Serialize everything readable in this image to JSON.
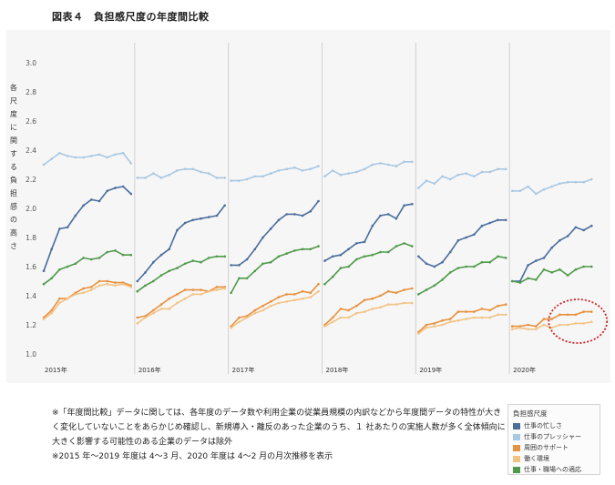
{
  "figure_title": "図表４　負担感尺度の年度間比較",
  "notes": [
    "※「年度間比較」データに関しては、各年度のデータ数や利用企業の従業員規模の内訳などから年度間データの特性が大きく変化していないことをあらかじめ確認し、新規導入・離反のあった企業のうち、１ 社あたりの実施人数が多く全体傾向に大きく影響する可能性のある企業のデータは除外",
    "※2015 年～2019 年度は 4～3 月、2020 年度は 4～2 月の月次推移を表示"
  ],
  "legend": {
    "title": "負担感尺度",
    "items": [
      {
        "label": "仕事の忙しさ",
        "color": "#4a6d9c"
      },
      {
        "label": "仕事のプレッシャー",
        "color": "#a9c8e3"
      },
      {
        "label": "周囲のサポート",
        "color": "#e8913e"
      },
      {
        "label": "働く環境",
        "color": "#f3c384"
      },
      {
        "label": "仕事・職場への適応",
        "color": "#4f9a4a"
      }
    ]
  },
  "highlight": {
    "shape": "dotted ellipse",
    "color": "#cc2222",
    "panel": "2020年",
    "marks": "end of 周囲のサポート and 働く環境"
  },
  "chart_data": {
    "type": "line",
    "title": "",
    "ylabel": "各尺度に関する負担感の高さ",
    "ylim": [
      1.0,
      3.0
    ],
    "yticks": [
      "1.0",
      "1.2",
      "1.4",
      "1.6",
      "1.8",
      "2.0",
      "2.2",
      "2.4",
      "2.6",
      "2.8",
      "3.0"
    ],
    "grid": false,
    "legend_position": "bottom-right, outside plot",
    "panels": [
      {
        "year": "2015年",
        "series": [
          {
            "name": "仕事のプレッシャー",
            "values": [
              2.3,
              2.34,
              2.38,
              2.36,
              2.35,
              2.35,
              2.36,
              2.37,
              2.35,
              2.37,
              2.38,
              2.31
            ]
          },
          {
            "name": "仕事の忙しさ",
            "values": [
              1.57,
              1.72,
              1.86,
              1.87,
              1.95,
              2.02,
              2.06,
              2.05,
              2.12,
              2.14,
              2.15,
              2.1
            ]
          },
          {
            "name": "仕事・職場への適応",
            "values": [
              1.48,
              1.52,
              1.58,
              1.6,
              1.62,
              1.66,
              1.65,
              1.66,
              1.7,
              1.71,
              1.68,
              1.68
            ]
          },
          {
            "name": "周囲のサポート",
            "values": [
              1.25,
              1.3,
              1.38,
              1.38,
              1.42,
              1.45,
              1.46,
              1.5,
              1.5,
              1.49,
              1.49,
              1.47
            ]
          },
          {
            "name": "働く環境",
            "values": [
              1.24,
              1.28,
              1.35,
              1.38,
              1.41,
              1.42,
              1.44,
              1.47,
              1.48,
              1.47,
              1.48,
              1.46
            ]
          }
        ]
      },
      {
        "year": "2016年",
        "series": [
          {
            "name": "仕事のプレッシャー",
            "values": [
              2.21,
              2.21,
              2.24,
              2.21,
              2.23,
              2.26,
              2.27,
              2.27,
              2.25,
              2.24,
              2.21,
              2.21
            ]
          },
          {
            "name": "仕事の忙しさ",
            "values": [
              1.5,
              1.56,
              1.63,
              1.68,
              1.72,
              1.85,
              1.9,
              1.92,
              1.93,
              1.94,
              1.95,
              2.02
            ]
          },
          {
            "name": "仕事・職場への適応",
            "values": [
              1.43,
              1.47,
              1.5,
              1.54,
              1.57,
              1.59,
              1.62,
              1.64,
              1.63,
              1.66,
              1.67,
              1.67
            ]
          },
          {
            "name": "周囲のサポート",
            "values": [
              1.25,
              1.26,
              1.3,
              1.34,
              1.38,
              1.41,
              1.44,
              1.44,
              1.44,
              1.43,
              1.46,
              1.46
            ]
          },
          {
            "name": "働く環境",
            "values": [
              1.21,
              1.25,
              1.28,
              1.31,
              1.31,
              1.35,
              1.38,
              1.41,
              1.41,
              1.43,
              1.44,
              1.45
            ]
          }
        ]
      },
      {
        "year": "2017年",
        "series": [
          {
            "name": "仕事のプレッシャー",
            "values": [
              2.19,
              2.19,
              2.2,
              2.22,
              2.22,
              2.24,
              2.26,
              2.27,
              2.28,
              2.26,
              2.27,
              2.29
            ]
          },
          {
            "name": "仕事の忙しさ",
            "values": [
              1.61,
              1.61,
              1.65,
              1.72,
              1.8,
              1.86,
              1.92,
              1.96,
              1.96,
              1.95,
              1.98,
              2.05
            ]
          },
          {
            "name": "仕事・職場への適応",
            "values": [
              1.42,
              1.52,
              1.52,
              1.57,
              1.62,
              1.63,
              1.67,
              1.69,
              1.71,
              1.72,
              1.72,
              1.74
            ]
          },
          {
            "name": "周囲のサポート",
            "values": [
              1.19,
              1.25,
              1.26,
              1.3,
              1.33,
              1.36,
              1.39,
              1.41,
              1.41,
              1.43,
              1.42,
              1.48
            ]
          },
          {
            "name": "働く環境",
            "values": [
              1.18,
              1.22,
              1.25,
              1.28,
              1.3,
              1.33,
              1.35,
              1.36,
              1.37,
              1.38,
              1.39,
              1.43
            ]
          }
        ]
      },
      {
        "year": "2018年",
        "series": [
          {
            "name": "仕事のプレッシャー",
            "values": [
              2.22,
              2.26,
              2.23,
              2.24,
              2.25,
              2.27,
              2.3,
              2.31,
              2.3,
              2.29,
              2.32,
              2.32
            ]
          },
          {
            "name": "仕事の忙しさ",
            "values": [
              1.64,
              1.67,
              1.68,
              1.72,
              1.76,
              1.77,
              1.88,
              1.95,
              1.96,
              1.93,
              2.02,
              2.03
            ]
          },
          {
            "name": "仕事・職場への適応",
            "values": [
              1.48,
              1.53,
              1.59,
              1.6,
              1.65,
              1.67,
              1.68,
              1.7,
              1.7,
              1.74,
              1.76,
              1.74
            ]
          },
          {
            "name": "周囲のサポート",
            "values": [
              1.2,
              1.25,
              1.31,
              1.3,
              1.33,
              1.37,
              1.38,
              1.4,
              1.43,
              1.42,
              1.44,
              1.45
            ]
          },
          {
            "name": "働く環境",
            "values": [
              1.19,
              1.22,
              1.25,
              1.25,
              1.28,
              1.29,
              1.31,
              1.32,
              1.34,
              1.34,
              1.35,
              1.35
            ]
          }
        ]
      },
      {
        "year": "2019年",
        "series": [
          {
            "name": "仕事のプレッシャー",
            "values": [
              2.14,
              2.19,
              2.17,
              2.22,
              2.2,
              2.23,
              2.24,
              2.22,
              2.25,
              2.25,
              2.27,
              2.27
            ]
          },
          {
            "name": "仕事の忙しさ",
            "values": [
              1.67,
              1.62,
              1.6,
              1.63,
              1.7,
              1.78,
              1.8,
              1.82,
              1.88,
              1.9,
              1.92,
              1.92
            ]
          },
          {
            "name": "仕事・職場への適応",
            "values": [
              1.41,
              1.44,
              1.47,
              1.51,
              1.56,
              1.59,
              1.6,
              1.6,
              1.63,
              1.63,
              1.67,
              1.66
            ]
          },
          {
            "name": "周囲のサポート",
            "values": [
              1.15,
              1.2,
              1.21,
              1.23,
              1.24,
              1.29,
              1.29,
              1.29,
              1.31,
              1.3,
              1.33,
              1.34
            ]
          },
          {
            "name": "働く環境",
            "values": [
              1.14,
              1.18,
              1.19,
              1.2,
              1.22,
              1.23,
              1.24,
              1.25,
              1.25,
              1.25,
              1.27,
              1.27
            ]
          }
        ]
      },
      {
        "year": "2020年",
        "series": [
          {
            "name": "仕事のプレッシャー",
            "values": [
              2.12,
              2.12,
              2.15,
              2.1,
              2.13,
              2.15,
              2.17,
              2.18,
              2.18,
              2.18,
              2.2
            ]
          },
          {
            "name": "仕事の忙しさ",
            "values": [
              1.5,
              1.5,
              1.61,
              1.64,
              1.66,
              1.73,
              1.78,
              1.81,
              1.87,
              1.85,
              1.88
            ]
          },
          {
            "name": "仕事・職場への適応",
            "values": [
              1.5,
              1.49,
              1.52,
              1.51,
              1.58,
              1.56,
              1.58,
              1.54,
              1.58,
              1.6,
              1.6
            ]
          },
          {
            "name": "周囲のサポート",
            "values": [
              1.19,
              1.19,
              1.2,
              1.19,
              1.24,
              1.24,
              1.27,
              1.27,
              1.27,
              1.29,
              1.29
            ]
          },
          {
            "name": "働く環境",
            "values": [
              1.17,
              1.18,
              1.17,
              1.17,
              1.2,
              1.18,
              1.2,
              1.2,
              1.21,
              1.21,
              1.22
            ]
          }
        ]
      }
    ]
  }
}
